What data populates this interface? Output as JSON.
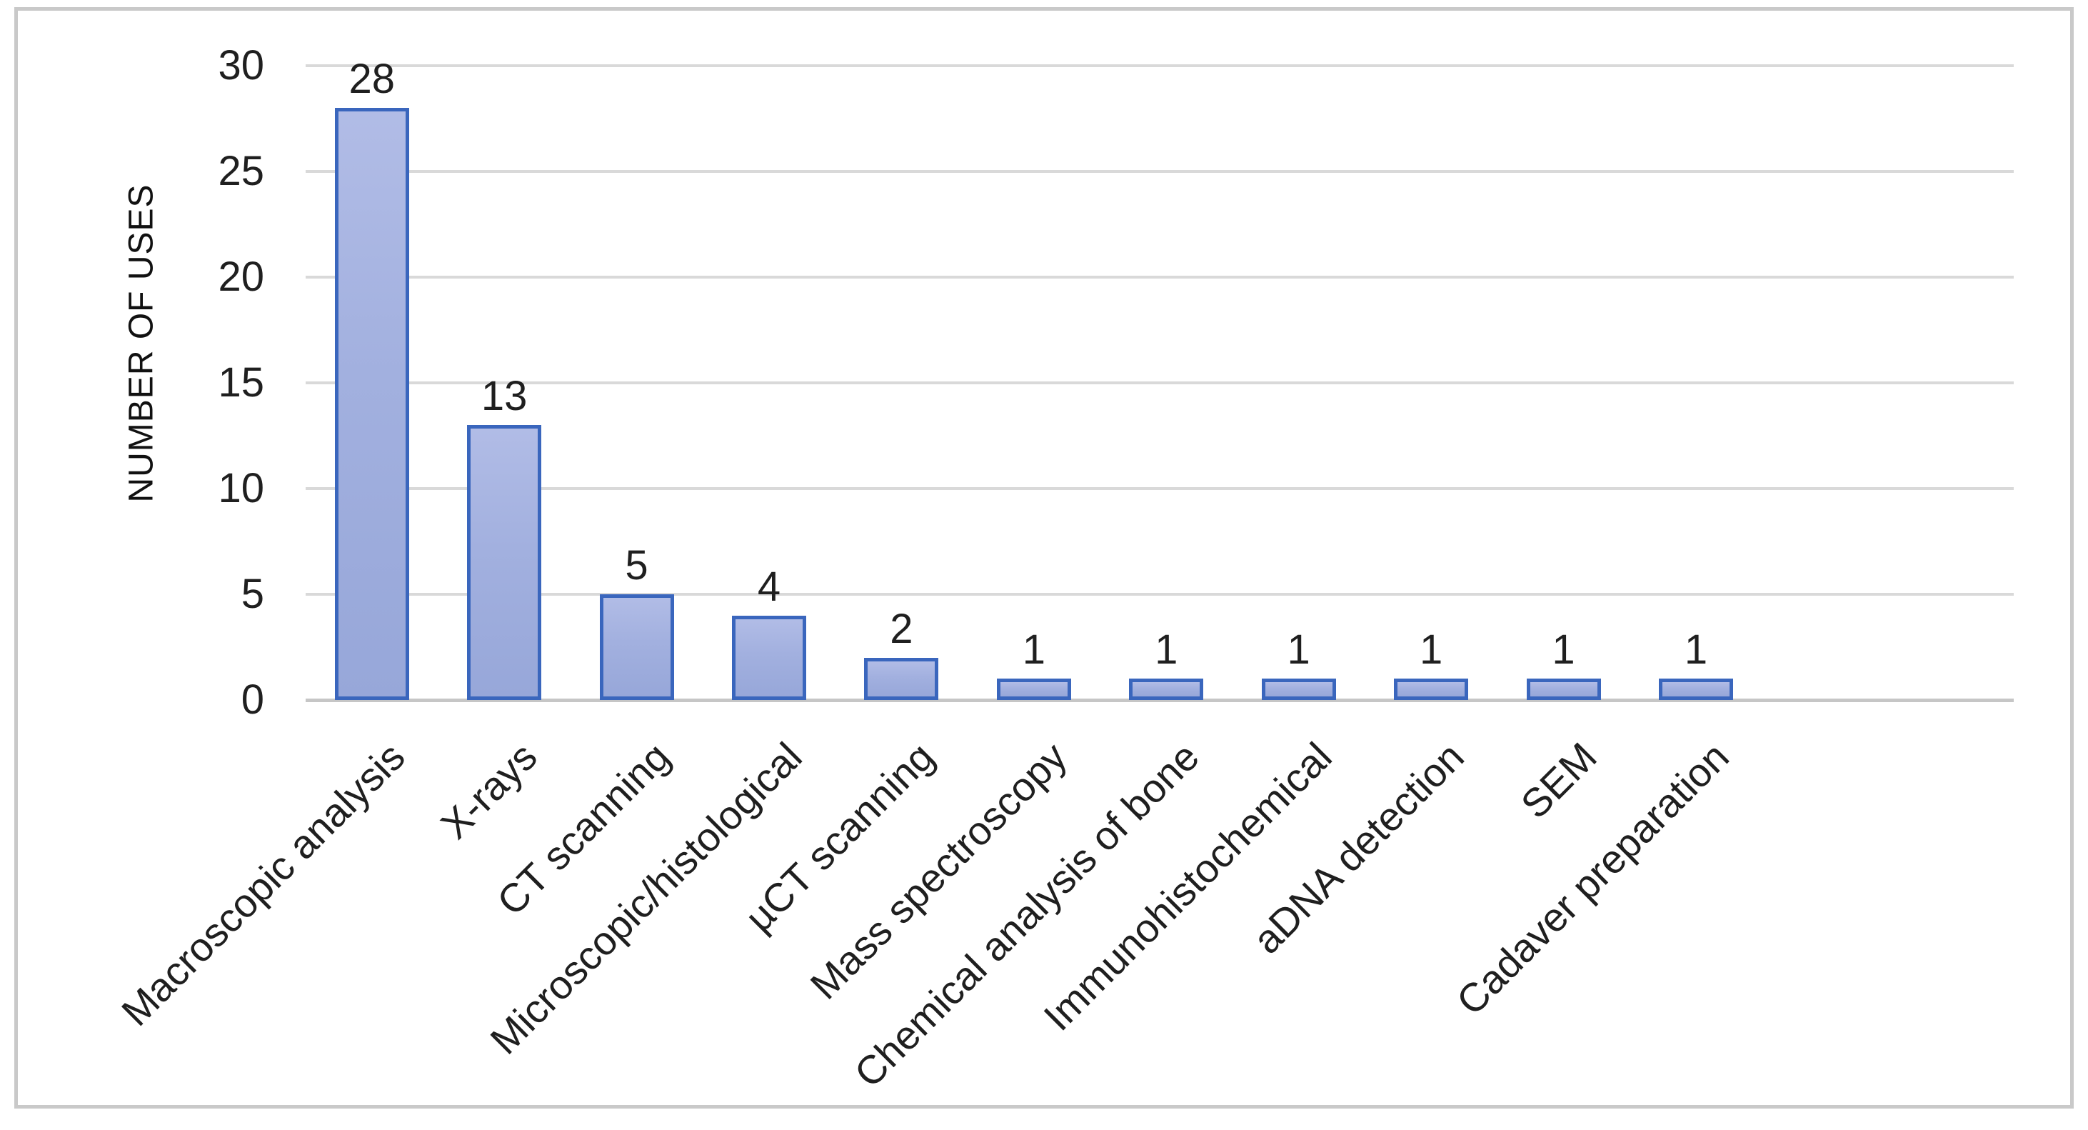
{
  "chart_data": {
    "type": "bar",
    "title": "",
    "ylabel": "NUMBER OF USES",
    "xlabel": "",
    "categories": [
      "Macroscopic analysis",
      "X-rays",
      "CT scanning",
      "Microscopic/histological",
      "µCT scanning",
      "Mass spectroscopy",
      "Chemical analysis of bone",
      "Immunohistochemical",
      "aDNA detection",
      "SEM",
      "Cadaver preparation"
    ],
    "values": [
      28,
      13,
      5,
      4,
      2,
      1,
      1,
      1,
      1,
      1,
      1
    ],
    "data_labels": [
      28,
      13,
      5,
      4,
      2,
      1,
      1,
      1,
      1,
      1,
      1
    ],
    "ylim": [
      0,
      30
    ],
    "yticks": [
      0,
      5,
      10,
      15,
      20,
      25,
      30
    ],
    "grid": true,
    "legend_position": "none",
    "category_label_rotation_deg": 45,
    "colors": {
      "bar_fill": "#a2b0df",
      "bar_fill_top": "#b1bce6",
      "bar_fill_bottom": "#97a7d9",
      "bar_border": "#3a66bd",
      "gridline": "#d9d9d9",
      "axis_line": "#c6c6c6",
      "text": "#1f1f1f",
      "frame_border": "#c9c9c9",
      "background": "#ffffff"
    }
  }
}
